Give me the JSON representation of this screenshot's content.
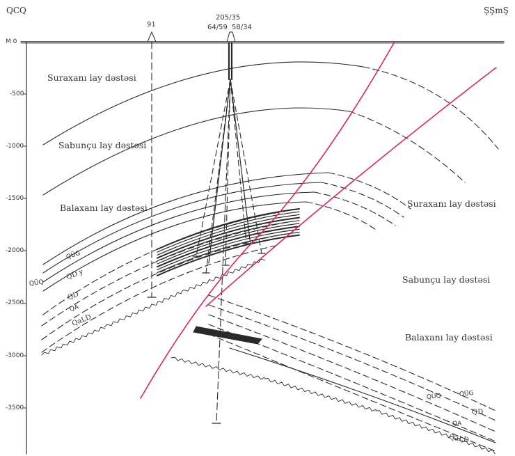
{
  "corners": {
    "left": "QCQ",
    "right": "ŞŞmŞ"
  },
  "depth_labels": [
    "M 0",
    "-500",
    "-1000",
    "-1500",
    "-2000",
    "-2500",
    "-3000",
    "-3500"
  ],
  "wells": {
    "w1": "91",
    "w2": "205/35",
    "w3": "64/59",
    "w4": "58/34"
  },
  "formations_left": {
    "surakhany": "Suraxanı lay dəstəsi",
    "sabunchu": "Sabunçu lay dəstəsi",
    "balakhany": "Balaxanı lay dəstəsi"
  },
  "formations_right": {
    "surakhany": "Suraxanı lay dəstəsi",
    "sabunchu": "Sabunçu lay dəstəsi",
    "balakhany": "Balaxanı lay dəstəsi"
  },
  "units_left": {
    "qug": "QÜG",
    "quq": "QÜQ",
    "qdy": "QD y",
    "qd": "QD",
    "qa": "QA",
    "qald": "QaLD"
  },
  "units_right": {
    "quq": "QÜQ",
    "qug": "QÜG",
    "qd": "QD",
    "qa": "QA",
    "qald": "QaLD"
  },
  "colors": {
    "fault": "#e0245e",
    "line": "#2a2a2a",
    "frame": "#333333"
  }
}
